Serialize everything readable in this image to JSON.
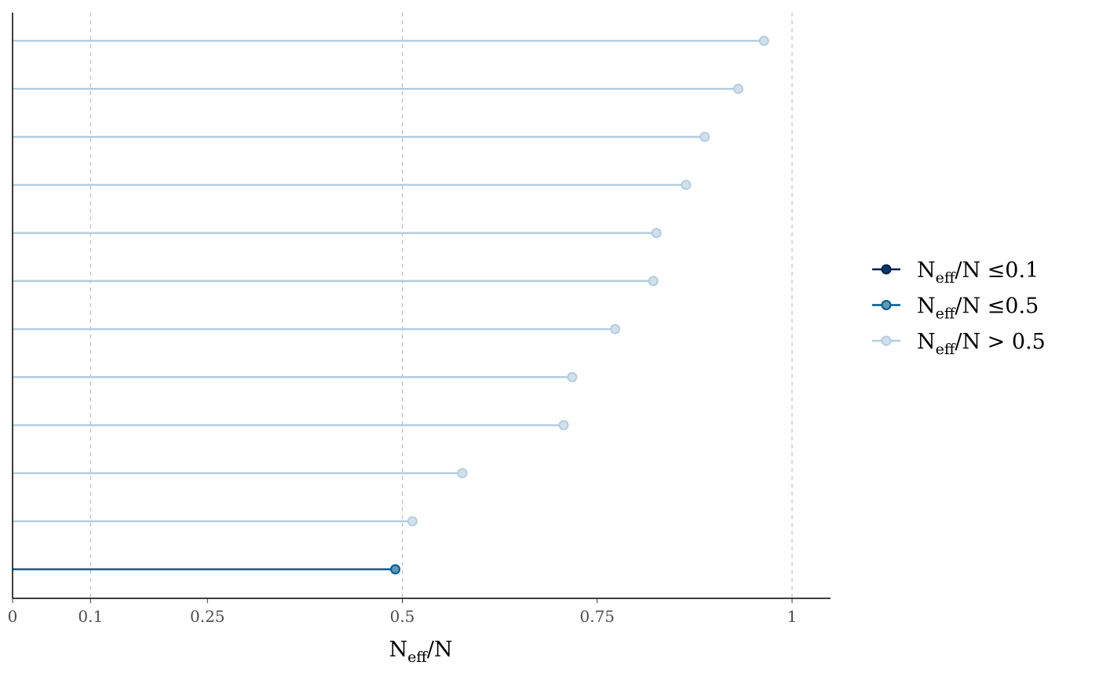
{
  "chart_data": {
    "type": "lollipop",
    "title": "",
    "xlabel": {
      "main": "N",
      "sub": "eff",
      "rest": "/N"
    },
    "ylabel": "",
    "xlim": [
      0,
      1.05
    ],
    "x_ticks": [
      0,
      0.1,
      0.25,
      0.5,
      0.75,
      1
    ],
    "x_tick_labels": [
      "0",
      "0.1",
      "0.25",
      "0.5",
      "0.75",
      "1"
    ],
    "vlines": [
      0.1,
      0.5,
      1
    ],
    "values": [
      0.964,
      0.931,
      0.888,
      0.864,
      0.826,
      0.822,
      0.773,
      0.718,
      0.707,
      0.577,
      0.513,
      0.491
    ],
    "legend_position": "right",
    "legend": [
      {
        "main": "N",
        "sub": "eff",
        "rest": "/N ≤0.1",
        "line": "#011f4b",
        "fill": "#03396c",
        "stroke": "#011f4b"
      },
      {
        "main": "N",
        "sub": "eff",
        "rest": "/N ≤0.5",
        "line": "#005b96",
        "fill": "#6497b1",
        "stroke": "#005b96"
      },
      {
        "main": "N",
        "sub": "eff",
        "rest": "/N > 0.5",
        "line": "#b3cde0",
        "fill": "#d1e1ec",
        "stroke": "#b3cde0"
      }
    ]
  }
}
